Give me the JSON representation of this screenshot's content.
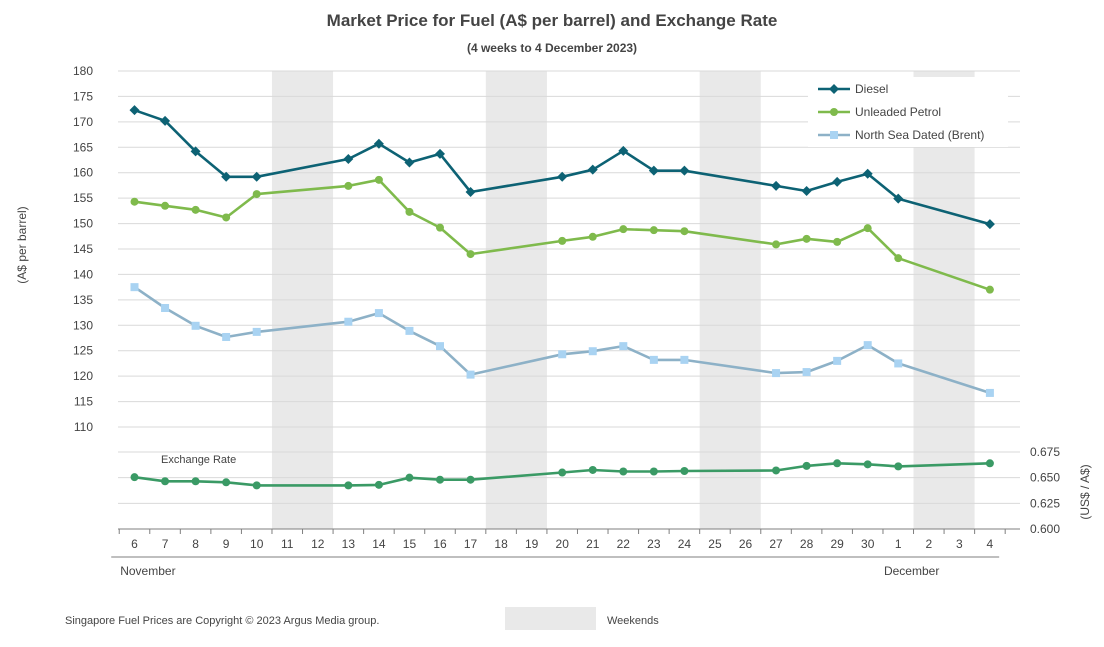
{
  "chart_data": {
    "type": "line",
    "title": "Market Price for Fuel (A$ per barrel) and Exchange Rate",
    "subtitle": "(4 weeks to 4 December 2023)",
    "ylabel": "(A$ per barrel)",
    "ylabel_right": "(US$ / A$)",
    "ylim": [
      110,
      180
    ],
    "y_ticks": [
      "180",
      "175",
      "170",
      "165",
      "160",
      "155",
      "150",
      "145",
      "140",
      "135",
      "130",
      "125",
      "120",
      "115",
      "110"
    ],
    "ylim_right": [
      0.6,
      0.675
    ],
    "y_ticks_right": [
      "0.675",
      "0.650",
      "0.625",
      "0.600"
    ],
    "x": [
      "6",
      "7",
      "8",
      "9",
      "10",
      "11",
      "12",
      "13",
      "14",
      "15",
      "16",
      "17",
      "18",
      "19",
      "20",
      "21",
      "22",
      "23",
      "24",
      "25",
      "26",
      "27",
      "28",
      "29",
      "30",
      "1",
      "2",
      "3",
      "4"
    ],
    "months": [
      {
        "label": "November",
        "start": 0,
        "end": 24
      },
      {
        "label": "December",
        "start": 25,
        "end": 28
      }
    ],
    "weekend_label": "Weekends",
    "weekend_pairs": [
      [
        5,
        6
      ],
      [
        12,
        13
      ],
      [
        19,
        20
      ],
      [
        26,
        27
      ]
    ],
    "grid": true,
    "legend_position": "top-right",
    "series": [
      {
        "name": "Diesel",
        "color": "#0d6274",
        "marker": "diamond",
        "values": [
          172.3,
          170.2,
          164.2,
          159.2,
          159.2,
          null,
          null,
          162.7,
          165.7,
          162.0,
          163.7,
          156.2,
          null,
          null,
          159.2,
          160.6,
          164.3,
          160.4,
          160.4,
          null,
          null,
          157.4,
          156.4,
          158.2,
          159.8,
          154.9,
          null,
          null,
          149.9
        ]
      },
      {
        "name": "Unleaded Petrol",
        "color": "#7fba4c",
        "marker": "circle",
        "values": [
          154.3,
          153.5,
          152.7,
          151.2,
          155.8,
          null,
          null,
          157.4,
          158.6,
          152.3,
          149.2,
          144.0,
          null,
          null,
          146.6,
          147.4,
          148.9,
          148.7,
          148.5,
          null,
          null,
          145.9,
          147.0,
          146.4,
          149.1,
          143.2,
          null,
          null,
          137.0
        ]
      },
      {
        "name": "North Sea Dated (Brent)",
        "color": "#8db1c7",
        "marker_color": "#a9d3f2",
        "marker": "square",
        "values": [
          137.5,
          133.4,
          129.9,
          127.7,
          128.7,
          null,
          null,
          130.7,
          132.4,
          128.9,
          125.9,
          120.3,
          null,
          null,
          124.3,
          124.9,
          125.9,
          123.2,
          123.2,
          null,
          null,
          120.6,
          120.8,
          123.0,
          126.1,
          122.5,
          null,
          null,
          116.7
        ]
      }
    ],
    "exchange_rate": {
      "name": "Exchange Rate",
      "color": "#3a9a65",
      "values": [
        0.6505,
        0.6465,
        0.6465,
        0.6455,
        0.6425,
        null,
        null,
        0.6425,
        0.643,
        0.65,
        0.648,
        0.648,
        null,
        null,
        0.655,
        0.6575,
        0.656,
        0.656,
        0.6565,
        null,
        null,
        0.657,
        0.6615,
        0.664,
        0.663,
        0.661,
        null,
        null,
        0.664
      ]
    }
  },
  "footer": {
    "copyright": "Singapore Fuel Prices are Copyright © 2023 Argus Media group."
  },
  "colors": {
    "weekend_fill": "#e9e9e9",
    "grid": "#d9d9d9",
    "axis": "#7f7f7f"
  }
}
